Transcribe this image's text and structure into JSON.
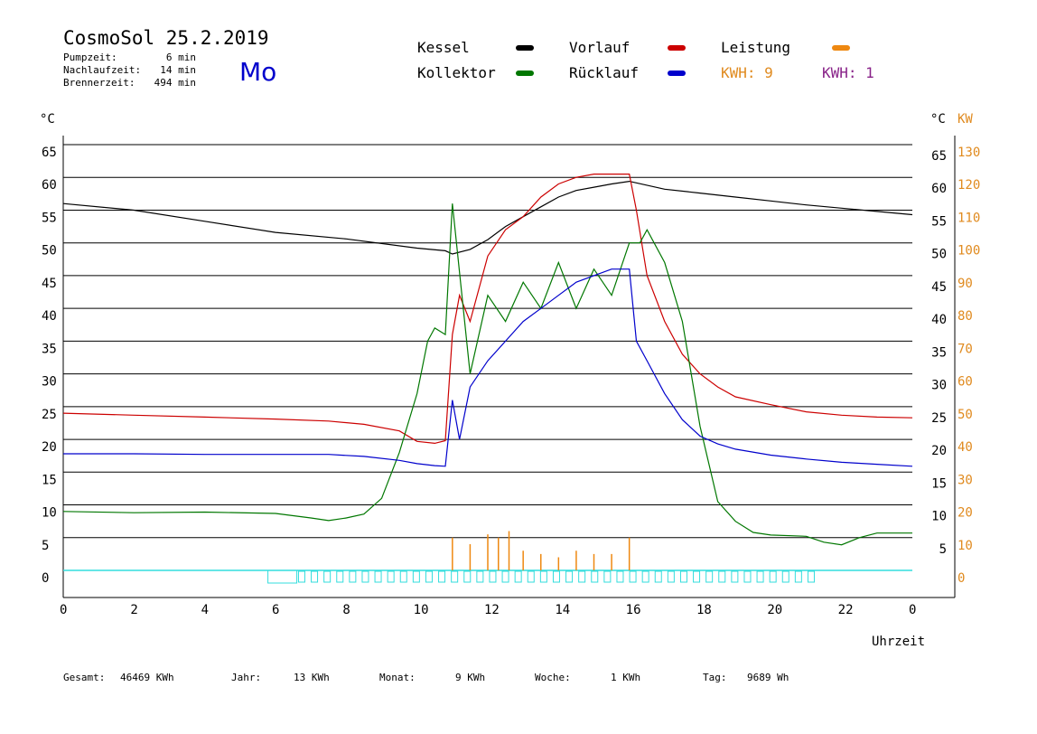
{
  "header": {
    "title": "CosmoSol 25.2.2019",
    "day": "Mo",
    "stats": [
      {
        "label": "Pumpzeit:",
        "value": "6 min"
      },
      {
        "label": "Nachlaufzeit:",
        "value": "14 min"
      },
      {
        "label": "Brennerzeit:",
        "value": "494 min"
      }
    ]
  },
  "legend": {
    "kessel": "Kessel",
    "vorlauf": "Vorlauf",
    "leistung": "Leistung",
    "kollektor": "Kollektor",
    "ruecklauf": "Rücklauf",
    "kwh_orange": "KWH: 9",
    "kwh_purple": "KWH: 1"
  },
  "colors": {
    "kessel": "#000000",
    "vorlauf": "#cc0000",
    "leistung": "#ee8811",
    "kollektor": "#007700",
    "ruecklauf": "#0000cc",
    "kwh_purple": "#882288",
    "baseline": "#33dddd",
    "kw_axis": "#e08a1e"
  },
  "footer": {
    "gesamt_label": "Gesamt:",
    "gesamt_value": "46469 KWh",
    "jahr_label": "Jahr:",
    "jahr_value": "13 KWh",
    "monat_label": "Monat:",
    "monat_value": "9 KWh",
    "woche_label": "Woche:",
    "woche_value": "1 KWh",
    "tag_label": "Tag:",
    "tag_value": "9689 Wh"
  },
  "chart_data": {
    "type": "line",
    "xlabel": "Uhrzeit",
    "ylabel_left": "°C",
    "ylabel_right_c": "°C",
    "ylabel_right_kw": "KW",
    "xlim": [
      0,
      24
    ],
    "ylim": [
      0,
      65
    ],
    "y2lim": [
      0,
      130
    ],
    "x_tick_labels": [
      "0",
      "2",
      "4",
      "6",
      "8",
      "10",
      "12",
      "14",
      "16",
      "18",
      "20",
      "22",
      "0"
    ],
    "y_ticks_left": [
      0,
      5,
      10,
      15,
      20,
      25,
      30,
      35,
      40,
      45,
      50,
      55,
      60,
      65
    ],
    "y_ticks_right_c": [
      5,
      10,
      15,
      20,
      25,
      30,
      35,
      40,
      45,
      50,
      55,
      60,
      65
    ],
    "y_ticks_right_kw": [
      0,
      10,
      20,
      30,
      40,
      50,
      60,
      70,
      80,
      90,
      100,
      110,
      120,
      130
    ],
    "grid": true,
    "series": [
      {
        "name": "Kessel",
        "x": [
          0,
          2,
          4,
          6,
          8,
          10,
          10.8,
          11,
          11.5,
          12,
          12.5,
          13,
          13.5,
          14,
          14.5,
          15,
          15.5,
          16,
          17,
          18,
          19,
          20,
          21,
          22,
          23,
          24
        ],
        "values": [
          56,
          55,
          53.3,
          51.6,
          50.6,
          49.2,
          48.8,
          48.3,
          49,
          50.5,
          52.5,
          54,
          55.5,
          57,
          58,
          58.5,
          59,
          59.4,
          58.2,
          57.6,
          57,
          56.4,
          55.8,
          55.3,
          54.8,
          54.3
        ]
      },
      {
        "name": "Vorlauf",
        "x": [
          0,
          2,
          4,
          6,
          7.5,
          8.5,
          9.5,
          10,
          10.5,
          10.8,
          11,
          11.2,
          11.5,
          12,
          12.5,
          13,
          13.5,
          14,
          14.5,
          15,
          15.5,
          16,
          16.2,
          16.5,
          17,
          17.5,
          18,
          18.5,
          19,
          20,
          21,
          22,
          23,
          24
        ],
        "values": [
          24,
          23.7,
          23.4,
          23.1,
          22.8,
          22.3,
          21.3,
          19.7,
          19.4,
          19.8,
          36,
          42,
          38,
          48,
          52,
          54,
          57,
          59,
          60,
          60.5,
          60.5,
          60.5,
          55,
          45,
          38,
          33,
          30,
          28,
          26.5,
          25.3,
          24.2,
          23.7,
          23.4,
          23.3
        ]
      },
      {
        "name": "Kollektor",
        "x": [
          0,
          2,
          4,
          6,
          7,
          7.5,
          8,
          8.5,
          9,
          9.5,
          10,
          10.3,
          10.5,
          10.8,
          11,
          11.5,
          12,
          12.5,
          13,
          13.5,
          14,
          14.5,
          15,
          15.5,
          16,
          16.3,
          16.5,
          17,
          17.5,
          18,
          18.5,
          19,
          19.5,
          20,
          21,
          21.5,
          22,
          22.5,
          23,
          24
        ],
        "values": [
          9,
          8.8,
          8.9,
          8.7,
          8.0,
          7.6,
          8.0,
          8.6,
          11,
          18,
          27,
          35,
          37,
          36,
          56,
          30,
          42,
          38,
          44,
          40,
          47,
          40,
          46,
          42,
          50,
          50,
          52,
          47,
          38,
          22,
          10.5,
          7.5,
          5.8,
          5.4,
          5.2,
          4.3,
          3.9,
          5.0,
          5.7,
          5.7
        ]
      },
      {
        "name": "Rücklauf",
        "x": [
          0,
          2,
          4,
          6,
          7.5,
          8.5,
          9.5,
          10,
          10.5,
          10.8,
          11,
          11.2,
          11.5,
          12,
          12.5,
          13,
          13.5,
          14,
          14.5,
          15,
          15.5,
          16,
          16.2,
          16.5,
          17,
          17.5,
          18,
          18.5,
          19,
          20,
          21,
          22,
          23,
          24
        ],
        "values": [
          17.8,
          17.8,
          17.7,
          17.7,
          17.7,
          17.4,
          16.8,
          16.3,
          16,
          15.9,
          26,
          20,
          28,
          32,
          35,
          38,
          40,
          42,
          44,
          45,
          46,
          46,
          35,
          32,
          27,
          23,
          20.5,
          19.3,
          18.5,
          17.6,
          17,
          16.5,
          16.2,
          15.9
        ]
      },
      {
        "name": "Leistung",
        "x": [
          11,
          11.5,
          12,
          12.3,
          12.6,
          13,
          13.5,
          14,
          14.5,
          15,
          15.5,
          16
        ],
        "values": [
          10,
          8,
          11,
          10,
          12,
          6,
          5,
          4,
          6,
          5,
          5,
          10
        ]
      }
    ],
    "baseline_boxes_from_hour": 6.5,
    "baseline_boxes_to_hour": 21.3
  }
}
